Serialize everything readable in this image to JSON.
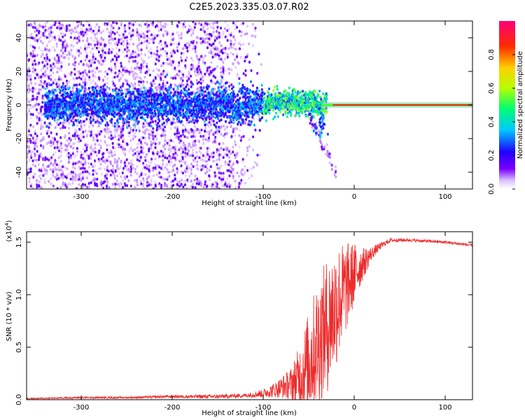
{
  "page_title": "C2E5.2023.335.03.07.R02",
  "chart_data": [
    {
      "type": "heatmap",
      "title": "C2E5.2023.335.03.07.R02",
      "xlabel": "Height of straight line (km)",
      "ylabel": "Frequency (Hz)",
      "xlim": [
        -360,
        130
      ],
      "ylim": [
        -50,
        50
      ],
      "xticks": [
        -300,
        -200,
        -100,
        0,
        100
      ],
      "xtick_labels": [
        "-300",
        "-200",
        "-100",
        "0",
        "100"
      ],
      "yticks": [
        -40,
        -20,
        0,
        20,
        40
      ],
      "ytick_labels": [
        "-40",
        "-20",
        "0",
        "20",
        "40"
      ],
      "colorbar": {
        "label": "Normalized spectral amplitude",
        "range": [
          0,
          1
        ],
        "ticks": [
          0.0,
          0.2,
          0.4,
          0.6,
          0.8
        ],
        "tick_labels": [
          "0.0",
          "0.2",
          "0.4",
          "0.6",
          "0.8"
        ],
        "colormap": [
          "#ffffff",
          "#7a00ff",
          "#1e00ff",
          "#00c8ff",
          "#00ff6e",
          "#b4ff00",
          "#ffd000",
          "#ff2a00",
          "#ff0078"
        ]
      },
      "features": {
        "noise_region_x": [
          -360,
          -120
        ],
        "noise_frequency_spread_hz": 50,
        "central_band_hz": 0,
        "transition_x": [
          -100,
          -30
        ],
        "downward_streak": {
          "x": [
            -50,
            -20
          ],
          "hz": [
            -5,
            -40
          ]
        },
        "strong_tone_x": [
          0,
          130
        ],
        "strong_tone_hz": 0
      }
    },
    {
      "type": "line",
      "xlabel": "Height of straight line (km)",
      "ylabel": "SNR (10 * v/v)",
      "y_scale_label": "(x10",
      "y_scale_exponent": "4",
      "y_multiplier": 10000,
      "xlim": [
        -360,
        130
      ],
      "ylim": [
        0,
        1.6
      ],
      "xticks": [
        -300,
        -200,
        -100,
        0,
        100
      ],
      "xtick_labels": [
        "-300",
        "-200",
        "-100",
        "0",
        "100"
      ],
      "yticks": [
        0.0,
        0.5,
        1.0,
        1.5
      ],
      "ytick_labels": [
        "0.0",
        "0.5",
        "1.0",
        "1.5"
      ],
      "color": "#ee2b2b",
      "series": [
        {
          "name": "SNR",
          "x": [
            -360,
            -300,
            -250,
            -200,
            -150,
            -120,
            -100,
            -85,
            -70,
            -60,
            -50,
            -40,
            -30,
            -20,
            -10,
            0,
            10,
            20,
            30,
            40,
            60,
            80,
            100,
            120,
            130
          ],
          "y": [
            0.01,
            0.02,
            0.02,
            0.03,
            0.03,
            0.04,
            0.06,
            0.1,
            0.15,
            0.22,
            0.35,
            0.55,
            0.7,
            0.9,
            1.05,
            1.2,
            1.3,
            1.4,
            1.47,
            1.52,
            1.52,
            1.51,
            1.5,
            1.48,
            1.47
          ],
          "spread": [
            0.005,
            0.01,
            0.01,
            0.015,
            0.02,
            0.02,
            0.04,
            0.08,
            0.15,
            0.3,
            0.5,
            0.6,
            0.65,
            0.6,
            0.45,
            0.3,
            0.15,
            0.06,
            0.03,
            0.02,
            0.015,
            0.015,
            0.015,
            0.015,
            0.015
          ]
        }
      ]
    }
  ]
}
